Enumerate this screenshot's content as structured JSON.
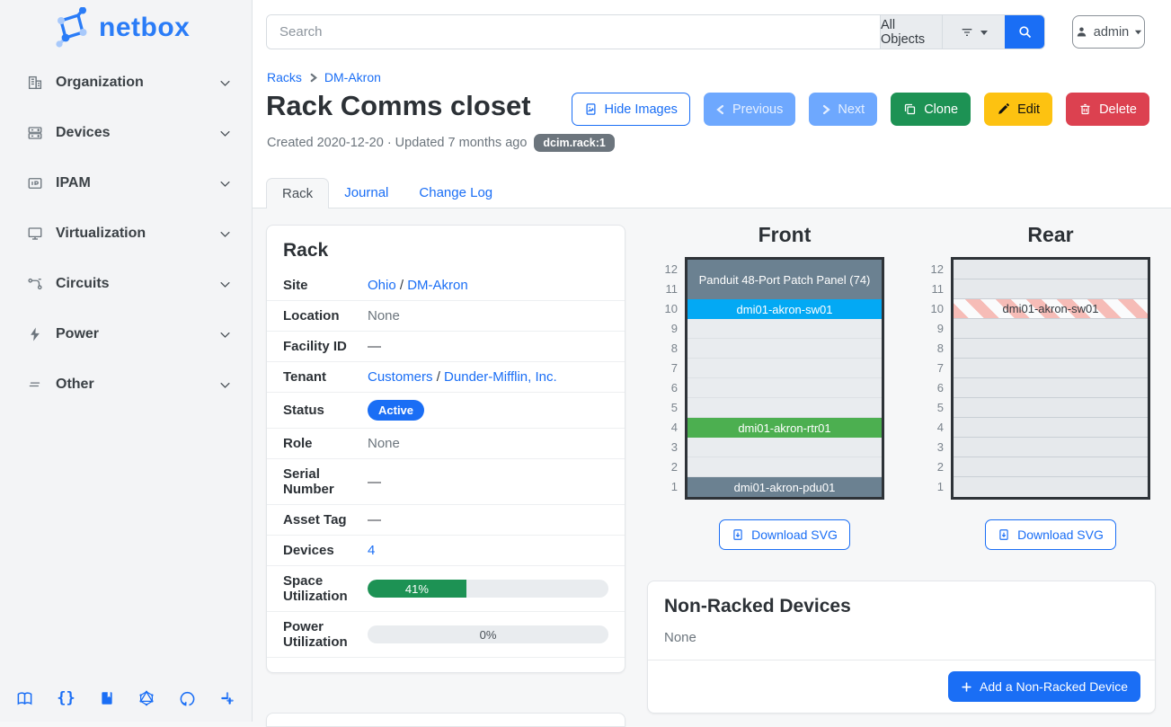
{
  "app": {
    "logo_text": "netbox"
  },
  "colors": {
    "primary": "#1a6ef5",
    "success": "#1d9254",
    "warning": "#fdc211",
    "danger": "#dc4150",
    "soft_primary": "#6ea8fe",
    "badge_gray": "#6c757d",
    "device_slate": "#6b8191",
    "device_blue": "#03a9f4",
    "device_green": "#4caf50",
    "stripe_pink": "#f6bcb7"
  },
  "sidebar": {
    "items": [
      {
        "id": "organization",
        "label": "Organization",
        "icon": "building-icon"
      },
      {
        "id": "devices",
        "label": "Devices",
        "icon": "server-icon"
      },
      {
        "id": "ipam",
        "label": "IPAM",
        "icon": "ip-address-icon"
      },
      {
        "id": "virtualization",
        "label": "Virtualization",
        "icon": "monitor-icon"
      },
      {
        "id": "circuits",
        "label": "Circuits",
        "icon": "transit-icon"
      },
      {
        "id": "power",
        "label": "Power",
        "icon": "lightning-bolt-icon"
      },
      {
        "id": "other",
        "label": "Other",
        "icon": "lines-icon"
      }
    ],
    "footer_icons": [
      "docs-book-icon",
      "rest-api-braces-icon",
      "api-docs-icon",
      "graphql-icon",
      "github-icon",
      "slack-icon"
    ]
  },
  "topbar": {
    "search_placeholder": "Search",
    "scope_label": "All Objects",
    "user_label": "admin"
  },
  "breadcrumb": {
    "item1": "Racks",
    "item2": "DM-Akron"
  },
  "header": {
    "title": "Rack Comms closet",
    "meta": "Created 2020-12-20 · Updated 7 months ago",
    "object_badge": "dcim.rack:1",
    "buttons": {
      "hide_images": "Hide Images",
      "previous": "Previous",
      "next": "Next",
      "clone": "Clone",
      "edit": "Edit",
      "delete": "Delete"
    }
  },
  "tabs": [
    {
      "label": "Rack",
      "active": true
    },
    {
      "label": "Journal",
      "active": false
    },
    {
      "label": "Change Log",
      "active": false
    }
  ],
  "rack_card": {
    "title": "Rack",
    "site": {
      "label": "Site",
      "link_a": "Ohio",
      "separator": "/",
      "link_b": "DM-Akron"
    },
    "location": {
      "label": "Location",
      "value": "None"
    },
    "facility": {
      "label": "Facility ID",
      "value": "—"
    },
    "tenant": {
      "label": "Tenant",
      "link_a": "Customers",
      "separator": "/",
      "link_b": "Dunder-Mifflin, Inc."
    },
    "status": {
      "label": "Status",
      "value": "Active"
    },
    "role": {
      "label": "Role",
      "value": "None"
    },
    "serial": {
      "label": "Serial Number",
      "value": "—"
    },
    "asset": {
      "label": "Asset Tag",
      "value": "—"
    },
    "devices": {
      "label": "Devices",
      "value": "4"
    },
    "space": {
      "label": "Space Utilization",
      "percent": 41,
      "display": "41%"
    },
    "power": {
      "label": "Power Utilization",
      "percent": 0,
      "display": "0%"
    }
  },
  "elevations": {
    "download_label": "Download SVG",
    "front": {
      "title": "Front",
      "units": [
        12,
        11,
        10,
        9,
        8,
        7,
        6,
        5,
        4,
        3,
        2,
        1
      ],
      "slots": [
        {
          "span": 2,
          "type": "device",
          "label": "Panduit 48-Port Patch Panel (74)",
          "bg": "#6b8191",
          "fg": "#ffffff"
        },
        {
          "span": 1,
          "type": "device",
          "label": "dmi01-akron-sw01",
          "bg": "#03a9f4",
          "fg": "#ffffff"
        },
        {
          "span": 1,
          "type": "empty"
        },
        {
          "span": 1,
          "type": "empty"
        },
        {
          "span": 1,
          "type": "empty"
        },
        {
          "span": 1,
          "type": "empty"
        },
        {
          "span": 1,
          "type": "empty"
        },
        {
          "span": 1,
          "type": "device",
          "label": "dmi01-akron-rtr01",
          "bg": "#4caf50",
          "fg": "#ffffff"
        },
        {
          "span": 1,
          "type": "empty"
        },
        {
          "span": 1,
          "type": "empty"
        },
        {
          "span": 1,
          "type": "device",
          "label": "dmi01-akron-pdu01",
          "bg": "#6b8191",
          "fg": "#ffffff"
        }
      ]
    },
    "rear": {
      "title": "Rear",
      "units": [
        12,
        11,
        10,
        9,
        8,
        7,
        6,
        5,
        4,
        3,
        2,
        1
      ],
      "slots": [
        {
          "span": 1,
          "type": "empty"
        },
        {
          "span": 1,
          "type": "empty"
        },
        {
          "span": 1,
          "type": "striped",
          "label": "dmi01-akron-sw01",
          "fg": "#343a40"
        },
        {
          "span": 1,
          "type": "empty"
        },
        {
          "span": 1,
          "type": "empty"
        },
        {
          "span": 1,
          "type": "empty"
        },
        {
          "span": 1,
          "type": "empty"
        },
        {
          "span": 1,
          "type": "empty"
        },
        {
          "span": 1,
          "type": "empty"
        },
        {
          "span": 1,
          "type": "empty"
        },
        {
          "span": 1,
          "type": "empty"
        },
        {
          "span": 1,
          "type": "empty"
        }
      ]
    }
  },
  "non_racked": {
    "title": "Non-Racked Devices",
    "body": "None",
    "add_label": "Add a Non-Racked Device"
  }
}
